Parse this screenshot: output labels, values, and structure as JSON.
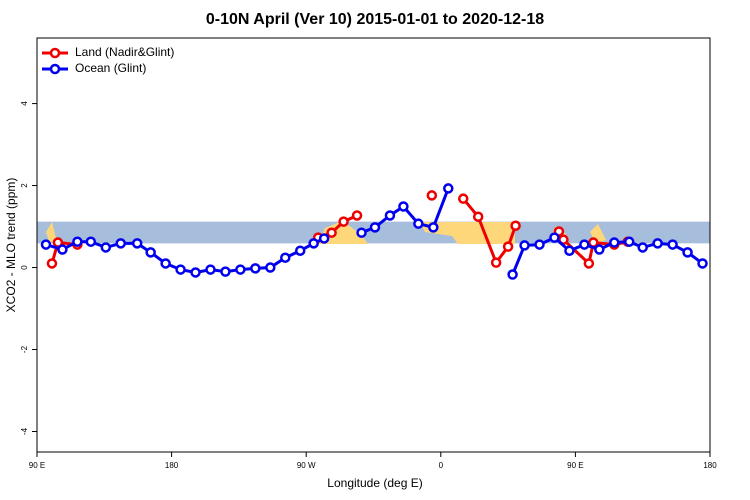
{
  "chart_data": {
    "type": "line",
    "title": "0-10N April (Ver 10)   2015-01-01 to 2020-12-18",
    "x_label": "Longitude (deg E)",
    "y_label": "XCO2 - MLO trend (ppm)",
    "xlim": [
      90,
      540
    ],
    "ylim": [
      -4.5,
      5.6
    ],
    "xticks": [
      {
        "value": 90,
        "label": "90 E"
      },
      180,
      {
        "value": 270,
        "label": "90 W"
      },
      {
        "value": 360,
        "label": "0"
      },
      {
        "value": 450,
        "label": "90 E"
      },
      {
        "value": 540,
        "label": "180"
      }
    ],
    "yticks": [
      -4,
      -2,
      0,
      2,
      4
    ],
    "band": [
      0.59,
      1.12
    ],
    "band_color": "#a6bddb",
    "legend": "top-left",
    "series": [
      {
        "name": "Land (Nadir&Glint)",
        "color": "#ee0000",
        "x": [
          100,
          104,
          117,
          null,
          278,
          287,
          295,
          304,
          null,
          354,
          null,
          375,
          385,
          397,
          405,
          410,
          null,
          439,
          442,
          459,
          462,
          476,
          485
        ],
        "values": [
          0.1,
          0.61,
          0.56,
          null,
          0.73,
          0.85,
          1.12,
          1.27,
          null,
          1.76,
          null,
          1.68,
          1.24,
          0.12,
          0.51,
          1.02,
          null,
          0.88,
          0.68,
          0.1,
          0.61,
          0.56,
          0.63
        ]
      },
      {
        "name": "Ocean (Glint)",
        "color": "#0000ee",
        "x": [
          96,
          107,
          117,
          126,
          136,
          146,
          157,
          166,
          176,
          186,
          196,
          206,
          216,
          226,
          236,
          246,
          256,
          266,
          275,
          282,
          null,
          307,
          316,
          326,
          335,
          345,
          355,
          365,
          null,
          408,
          416,
          426,
          436,
          446,
          456,
          466,
          476,
          486,
          495,
          505,
          515,
          525,
          535
        ],
        "values": [
          0.56,
          0.44,
          0.63,
          0.63,
          0.49,
          0.59,
          0.59,
          0.37,
          0.1,
          -0.05,
          -0.12,
          -0.05,
          -0.1,
          -0.05,
          -0.02,
          0,
          0.24,
          0.41,
          0.59,
          0.71,
          null,
          0.85,
          0.98,
          1.27,
          1.49,
          1.07,
          0.98,
          1.93,
          null,
          -0.17,
          0.54,
          0.56,
          0.73,
          0.41,
          0.56,
          0.44,
          0.61,
          0.63,
          0.49,
          0.59,
          0.56,
          0.37,
          0.1
        ]
      }
    ]
  }
}
